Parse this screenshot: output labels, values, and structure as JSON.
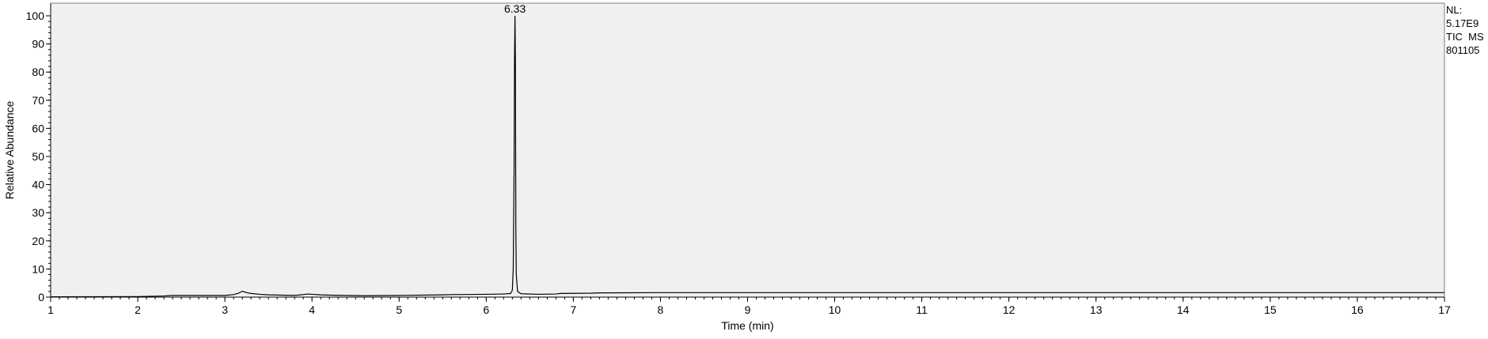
{
  "chart_data": {
    "type": "line",
    "title": "",
    "xlabel": "Time (min)",
    "ylabel": "Relative Abundance",
    "xlim": [
      1,
      17
    ],
    "ylim": [
      0,
      100
    ],
    "x_ticks": [
      1,
      2,
      3,
      4,
      5,
      6,
      7,
      8,
      9,
      10,
      11,
      12,
      13,
      14,
      15,
      16,
      17
    ],
    "y_ticks": [
      0,
      10,
      20,
      30,
      40,
      50,
      60,
      70,
      80,
      90,
      100
    ],
    "grid": false,
    "plot_background": "#f0f0f0",
    "line_color": "#000000",
    "series": [
      {
        "x": [
          1.0,
          2.0,
          2.3,
          2.4,
          3.0,
          3.1,
          3.15,
          3.2,
          3.25,
          3.3,
          3.4,
          3.5,
          3.8,
          3.9,
          3.95,
          4.0,
          4.1,
          4.2,
          4.4,
          4.6,
          5.0,
          5.5,
          5.6,
          6.0,
          6.2,
          6.28,
          6.3,
          6.31,
          6.32,
          6.325,
          6.33,
          6.335,
          6.34,
          6.345,
          6.36,
          6.4,
          6.6,
          6.8,
          6.85,
          7.2,
          7.3,
          8.0,
          10.0,
          12.0,
          14.0,
          16.0,
          17.0
        ],
        "y": [
          0.1,
          0.2,
          0.4,
          0.6,
          0.6,
          0.9,
          1.3,
          2.1,
          1.6,
          1.3,
          1.0,
          0.8,
          0.6,
          0.9,
          1.1,
          1.0,
          0.8,
          0.7,
          0.6,
          0.5,
          0.6,
          0.8,
          0.9,
          1.0,
          1.1,
          1.3,
          2.5,
          10,
          45,
          85,
          100,
          85,
          25,
          8,
          2.0,
          1.2,
          1.0,
          1.1,
          1.3,
          1.4,
          1.5,
          1.6,
          1.6,
          1.6,
          1.6,
          1.6,
          1.6
        ]
      }
    ],
    "annotations": [
      {
        "x": 6.33,
        "y": 100,
        "text": "6.33"
      }
    ]
  },
  "info": {
    "line1": "NL:",
    "line2": "5.17E9",
    "line3": "TIC  MS",
    "line4": "801105"
  }
}
